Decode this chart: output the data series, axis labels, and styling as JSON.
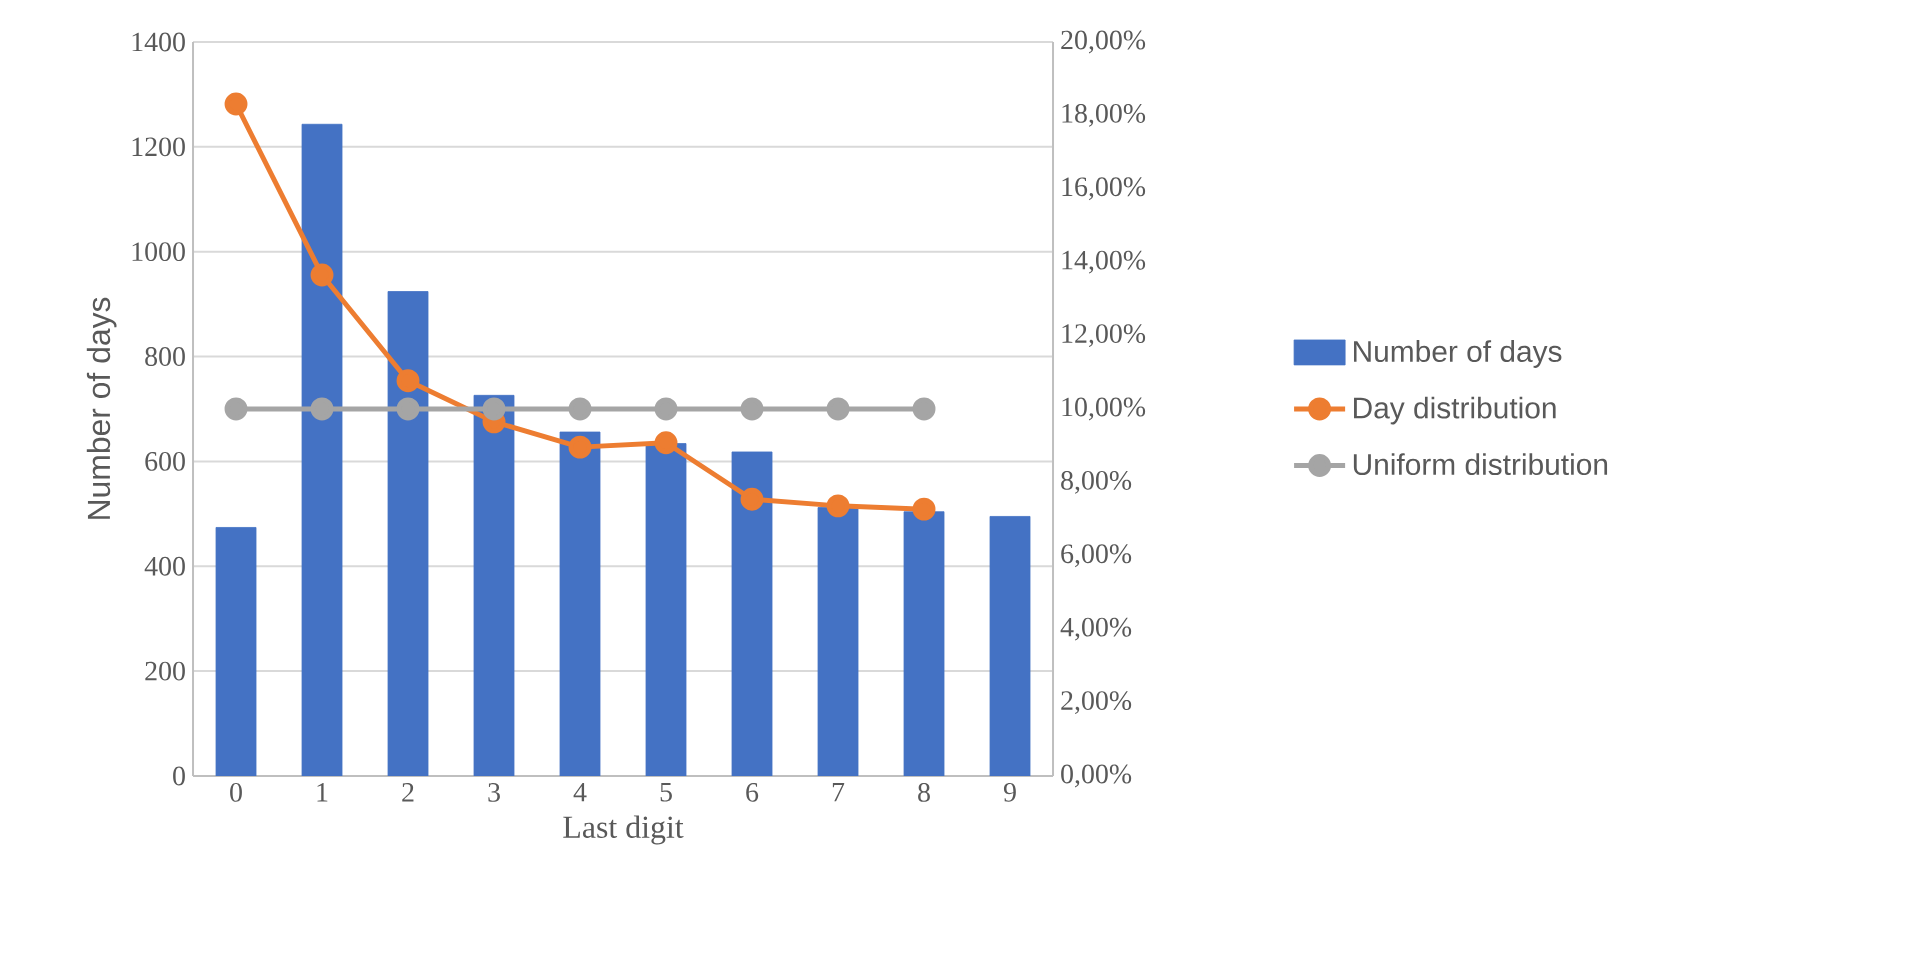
{
  "chart_data": {
    "type": "bar",
    "xlabel": "Last digit",
    "ylabel": "Number of days",
    "categories": [
      "0",
      "1",
      "2",
      "3",
      "4",
      "5",
      "6",
      "7",
      "8",
      "9"
    ],
    "series": [
      {
        "name": "Number of days",
        "color": "#4472c4",
        "values": [
          474,
          1243,
          924,
          726,
          656,
          634,
          618,
          512,
          504,
          495
        ]
      },
      {
        "name": "Day distribution",
        "type": "line",
        "axis": "y2",
        "color": "#ed7d31",
        "values": [
          18.31,
          13.65,
          10.77,
          9.65,
          8.96,
          9.08,
          7.54,
          7.36,
          7.27,
          null
        ]
      },
      {
        "name": "Uniform distribution",
        "type": "line",
        "axis": "y2",
        "color": "#a5a5a5",
        "values": [
          10,
          10,
          10,
          10,
          10,
          10,
          10,
          10,
          10,
          null
        ]
      }
    ],
    "ylim": [
      0,
      1400
    ],
    "yticks": [
      0,
      200,
      400,
      600,
      800,
      1000,
      1200,
      1400
    ],
    "y2lim": [
      0,
      20
    ],
    "y2ticks": [
      {
        "value": 0,
        "label": "0,00%"
      },
      {
        "value": 2,
        "label": "2,00%"
      },
      {
        "value": 4,
        "label": "4,00%"
      },
      {
        "value": 6,
        "label": "6,00%"
      },
      {
        "value": 8,
        "label": "8,00%"
      },
      {
        "value": 10,
        "label": "10,00%"
      },
      {
        "value": 12,
        "label": "12,00%"
      },
      {
        "value": 14,
        "label": "14,00%"
      },
      {
        "value": 16,
        "label": "16,00%"
      },
      {
        "value": 18,
        "label": "18,00%"
      },
      {
        "value": 20,
        "label": "20,00%"
      }
    ],
    "grid": "y",
    "legend": "right",
    "marker": "circle",
    "line_style": "solid"
  }
}
